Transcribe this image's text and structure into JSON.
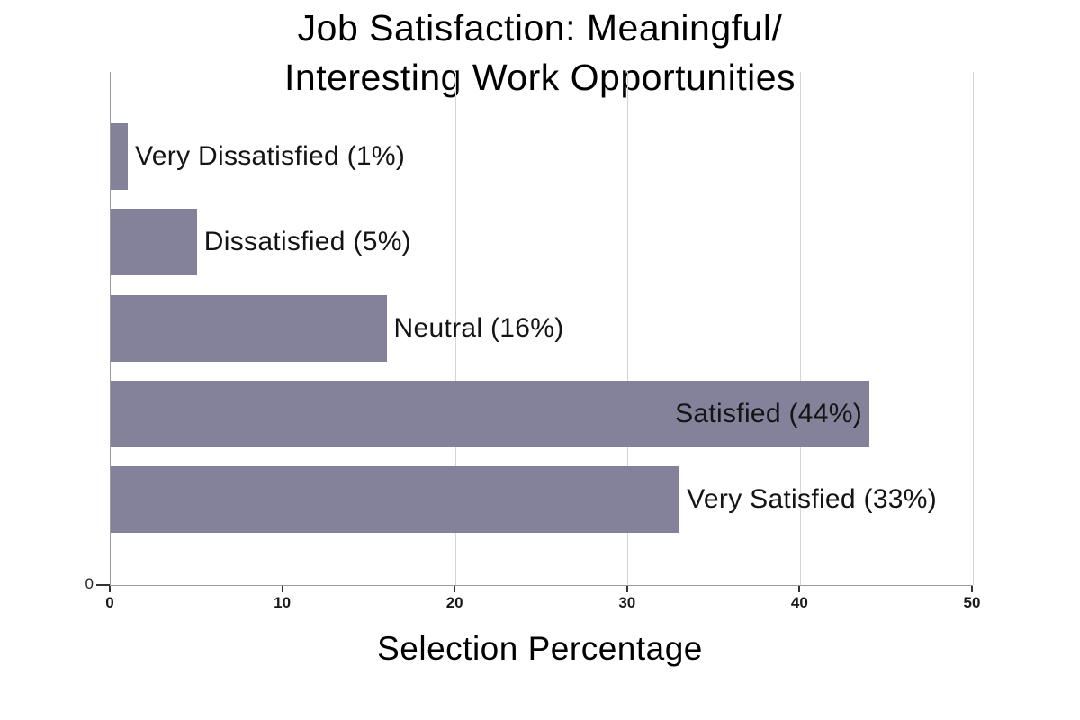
{
  "title": {
    "line1": "Job Satisfaction: Meaningful/",
    "line2": "Interesting Work Opportunities"
  },
  "chart_data": {
    "type": "bar",
    "orientation": "horizontal",
    "title": "Job Satisfaction: Meaningful/ Interesting Work Opportunities",
    "categories": [
      "Very Dissatisfied",
      "Dissatisfied",
      "Neutral",
      "Satisfied",
      "Very Satisfied"
    ],
    "values": [
      1,
      5,
      16,
      44,
      33
    ],
    "bar_labels": [
      "Very Dissatisfied (1%)",
      "Dissatisfied (5%)",
      "Neutral (16%)",
      "Satisfied (44%)",
      "Very Satisfied (33%)"
    ],
    "xlabel": "Selection Percentage",
    "ylabel": "",
    "xlim": [
      0,
      50
    ],
    "x_ticks": [
      0,
      10,
      20,
      30,
      40,
      50
    ],
    "y_axis_tick_label": "0",
    "grid": true,
    "legend": false,
    "bar_color": "#83829A",
    "gridline_color": "#d5d5d5",
    "axis_color": "#9b9b9b",
    "tick_color": "#333333",
    "text_color": "#111111"
  }
}
